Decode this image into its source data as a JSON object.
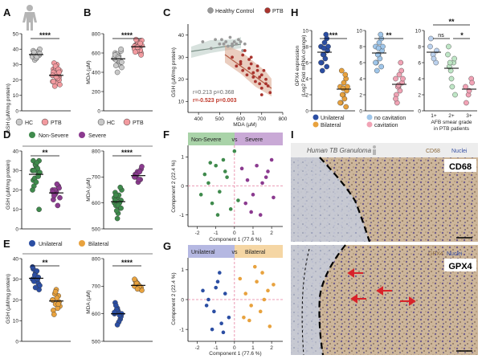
{
  "panels": {
    "A": {
      "label": "A",
      "ylabel": "GSH (µM/mg protein)",
      "ticks": [
        "0",
        "10",
        "20",
        "30",
        "40",
        "50"
      ],
      "categories": [
        "HC",
        "PTB"
      ],
      "sig": "****",
      "colors": [
        "#c8c8c8",
        "#f29a9f"
      ],
      "chart_data": {
        "type": "scatter",
        "ylim": [
          0,
          50
        ],
        "series": [
          {
            "name": "HC",
            "values": [
              36,
              37,
              38,
              35,
              34,
              39,
              37,
              36,
              40,
              33,
              38,
              35,
              36,
              37,
              39,
              34,
              36,
              38,
              35,
              37
            ],
            "mean": 36.5
          },
          {
            "name": "PTB",
            "values": [
              23,
              25,
              20,
              27,
              18,
              22,
              24,
              30,
              17,
              26,
              21,
              19,
              28,
              23,
              25,
              22,
              20,
              31,
              24,
              26,
              16,
              21,
              23,
              29,
              27,
              19,
              22,
              25
            ],
            "mean": 23
          }
        ]
      }
    },
    "B": {
      "label": "B",
      "ylabel": "MDA (µM)",
      "ticks": [
        "0",
        "200",
        "400",
        "600",
        "800"
      ],
      "categories": [
        "HC",
        "PTB"
      ],
      "sig": "****",
      "colors": [
        "#c8c8c8",
        "#f29a9f"
      ],
      "chart_data": {
        "type": "scatter",
        "ylim": [
          0,
          800
        ],
        "series": [
          {
            "name": "HC",
            "values": [
              540,
              560,
              500,
              600,
              480,
              620,
              530,
              570,
              450,
              590,
              510,
              550,
              400,
              520,
              580,
              560,
              640,
              470,
              545,
              505
            ],
            "mean": 540
          },
          {
            "name": "PTB",
            "values": [
              650,
              700,
              620,
              680,
              720,
              600,
              660,
              640,
              730,
              690,
              610,
              670,
              710,
              630,
              650,
              700,
              580,
              740,
              660,
              680,
              620,
              690,
              640,
              660,
              700,
              610
            ],
            "mean": 665
          }
        ]
      }
    },
    "C": {
      "label": "C",
      "xlabel": "MDA (µM)",
      "ylabel": "GSH (µM/mg protein)",
      "xticks": [
        "400",
        "500",
        "600",
        "700",
        "800"
      ],
      "yticks": [
        "10",
        "20",
        "30",
        "40"
      ],
      "legend": [
        {
          "name": "Healthy Control",
          "color": "#999999"
        },
        {
          "name": "PTB",
          "color": "#a9342e"
        }
      ],
      "r_hc": "r=0.213 p=0.368",
      "r_ptb": "r=-0.523 p=0.003",
      "chart_data": {
        "type": "scatter",
        "xlim": [
          350,
          800
        ],
        "ylim": [
          5,
          45
        ],
        "series": [
          {
            "name": "Healthy Control",
            "x": [
              420,
              460,
              480,
              500,
              510,
              520,
              530,
              540,
              550,
              560,
              560,
              570,
              580,
              590,
              600,
              610,
              620
            ],
            "y": [
              37,
              34,
              38,
              36,
              38,
              36,
              37,
              35,
              39,
              36,
              35,
              37,
              36,
              38,
              37,
              33,
              36
            ]
          },
          {
            "name": "PTB",
            "x": [
              560,
              580,
              600,
              610,
              620,
              630,
              640,
              650,
              660,
              660,
              670,
              680,
              690,
              700,
              700,
              710,
              720,
              730,
              610,
              640,
              680,
              700,
              650,
              720,
              600,
              690,
              740
            ],
            "y": [
              30,
              26,
              28,
              24,
              33,
              22,
              25,
              27,
              21,
              23,
              19,
              26,
              18,
              22,
              16,
              24,
              20,
              17,
              31,
              29,
              24,
              13,
              30,
              18,
              27,
              21,
              14
            ]
          }
        ]
      }
    },
    "D": {
      "label": "D",
      "legend": [
        {
          "name": "Non-Severe",
          "color": "#3f8a4c"
        },
        {
          "name": "Severe",
          "color": "#8b3a8f"
        }
      ],
      "gsh": {
        "ylabel": "GSH (µM/mg protein)",
        "ticks": [
          "0",
          "10",
          "20",
          "30",
          "40"
        ],
        "sig": "**",
        "chart_data": {
          "type": "scatter",
          "ylim": [
            0,
            40
          ],
          "series": [
            {
              "name": "Non-Severe",
              "values": [
                30,
                33,
                28,
                25,
                32,
                35,
                22,
                30,
                29,
                26,
                31,
                20,
                33,
                27,
                35,
                24,
                10,
                30,
                34
              ],
              "mean": 28
            },
            {
              "name": "Severe",
              "values": [
                20,
                18,
                22,
                15,
                19,
                21,
                17,
                23,
                16,
                20,
                12,
                19
              ],
              "mean": 18.5
            }
          ]
        }
      },
      "mda": {
        "ylabel": "MDA (µM)",
        "ticks": [
          "500",
          "600",
          "700",
          "800"
        ],
        "sig": "****",
        "chart_data": {
          "type": "scatter",
          "ylim": [
            500,
            800
          ],
          "series": [
            {
              "name": "Non-Severe",
              "values": [
                600,
                620,
                580,
                640,
                560,
                610,
                590,
                630,
                650,
                570,
                600,
                620,
                540,
                660,
                610,
                590,
                580,
                630
              ],
              "mean": 605
            },
            {
              "name": "Severe",
              "values": [
                700,
                720,
                690,
                710,
                680,
                730,
                700,
                690,
                740,
                710,
                720,
                700
              ],
              "mean": 705
            }
          ]
        }
      }
    },
    "E": {
      "label": "E",
      "legend": [
        {
          "name": "Unilateral",
          "color": "#2b4ea3"
        },
        {
          "name": "Bilateral",
          "color": "#e8a23e"
        }
      ],
      "gsh": {
        "ylabel": "GSH (µM/mg protein)",
        "ticks": [
          "0",
          "10",
          "20",
          "30",
          "40"
        ],
        "sig": "**",
        "chart_data": {
          "type": "scatter",
          "ylim": [
            0,
            40
          ],
          "series": [
            {
              "name": "Unilateral",
              "values": [
                30,
                33,
                28,
                35,
                31,
                25,
                29,
                34,
                27,
                32,
                30,
                36,
                26,
                31
              ],
              "mean": 30.5
            },
            {
              "name": "Bilateral",
              "values": [
                20,
                18,
                22,
                15,
                25,
                19,
                13,
                21,
                17,
                23,
                16,
                20,
                24,
                18
              ],
              "mean": 19.5
            }
          ]
        }
      },
      "mda": {
        "ylabel": "MDA (µM)",
        "ticks": [
          "500",
          "600",
          "700",
          "800"
        ],
        "sig": "****",
        "chart_data": {
          "type": "scatter",
          "ylim": [
            500,
            800
          ],
          "series": [
            {
              "name": "Unilateral",
              "values": [
                600,
                620,
                580,
                640,
                610,
                590,
                630,
                570,
                600,
                615,
                595,
                605,
                560
              ],
              "mean": 600
            },
            {
              "name": "Bilateral",
              "values": [
                700,
                710,
                690,
                720,
                705,
                695,
                715,
                700,
                685,
                710,
                700,
                725,
                690
              ],
              "mean": 703
            }
          ]
        }
      }
    },
    "F": {
      "label": "F",
      "tag_left": "Non-Severe",
      "tag_right": "Severe",
      "vs": "vs",
      "xlabel": "Component 1 (77.6 %)",
      "ylabel": "Component 2 (22.4 %)",
      "xticks": [
        "-2",
        "-1",
        "0",
        "1",
        "2"
      ],
      "yticks": [
        "-1",
        "0",
        "1"
      ],
      "chart_data": {
        "type": "scatter",
        "xlim": [
          -2.5,
          2.6
        ],
        "ylim": [
          -1.4,
          1.4
        ],
        "series": [
          {
            "name": "Non-Severe",
            "x": [
              -1.6,
              -1.4,
              -1.2,
              -1.0,
              -0.8,
              -0.6,
              -0.4,
              -0.2,
              0.0,
              -1.8,
              -0.9,
              -0.5,
              -1.3,
              0.2
            ],
            "y": [
              0.4,
              0.1,
              -0.6,
              0.7,
              -0.2,
              0.9,
              0.3,
              -0.8,
              1.2,
              -0.3,
              -1.0,
              0.5,
              0.8,
              -0.5
            ]
          },
          {
            "name": "Severe",
            "x": [
              0.4,
              0.7,
              1.0,
              1.2,
              1.5,
              1.8,
              2.1,
              0.9,
              1.4,
              1.7,
              2.0,
              0.6
            ],
            "y": [
              0.6,
              0.2,
              -0.3,
              0.7,
              0.1,
              0.5,
              -0.4,
              -0.9,
              -1.0,
              0.3,
              0.9,
              -0.6
            ]
          }
        ]
      }
    },
    "G": {
      "label": "G",
      "tag_left": "Unilateral",
      "tag_right": "Bilateral",
      "vs": "vs",
      "xlabel": "Component 1 (77.6 %)",
      "ylabel": "Component 2 (22.4 %)",
      "xticks": [
        "-2",
        "-1",
        "0",
        "1",
        "2"
      ],
      "yticks": [
        "-1",
        "0",
        "1"
      ],
      "chart_data": {
        "type": "scatter",
        "xlim": [
          -2.5,
          2.6
        ],
        "ylim": [
          -1.4,
          1.4
        ],
        "series": [
          {
            "name": "Unilateral",
            "x": [
              -1.7,
              -1.4,
              -1.1,
              -0.9,
              -0.7,
              -0.5,
              -1.2,
              -0.3,
              -0.8,
              -1.5,
              -0.6,
              -1.0
            ],
            "y": [
              0.3,
              0.0,
              -0.4,
              0.6,
              -0.8,
              0.2,
              -1.0,
              -0.6,
              0.9,
              -0.2,
              -1.1,
              0.4
            ]
          },
          {
            "name": "Bilateral",
            "x": [
              0.3,
              0.6,
              0.9,
              1.2,
              1.5,
              1.8,
              0.8,
              1.4,
              1.9,
              0.5,
              1.1,
              1.6,
              2.1
            ],
            "y": [
              0.7,
              0.2,
              -0.2,
              0.6,
              0.9,
              0.3,
              -0.7,
              -0.4,
              -0.9,
              -0.6,
              1.1,
              0.0,
              0.5
            ]
          }
        ]
      }
    },
    "H": {
      "label": "H",
      "ylabel": "GPX4 expression",
      "ylabel2": "(Log2 Fold mRNA change)",
      "ticks": [
        "0",
        "2",
        "4",
        "6",
        "8",
        "10"
      ],
      "sub1": {
        "sig": "***",
        "legend": [
          {
            "name": "Unilateral",
            "color": "#2b4ea3"
          },
          {
            "name": "Bilateral",
            "color": "#e8a23e"
          }
        ],
        "chart_data": {
          "type": "scatter",
          "ylim": [
            0,
            10
          ],
          "series": [
            {
              "name": "Unilateral",
              "values": [
                8,
                7,
                9,
                6,
                8.5,
                7.5,
                5,
                6.5,
                8,
                7,
                9.5,
                6,
                7.8,
                5.5
              ],
              "mean": 7.3
            },
            {
              "name": "Bilateral",
              "values": [
                3,
                2,
                4,
                1,
                3.5,
                2.5,
                5,
                1.5,
                3,
                2,
                4.5,
                1,
                2.8,
                0.5
              ],
              "mean": 2.7
            }
          ]
        }
      },
      "sub2": {
        "sig": "**",
        "legend": [
          {
            "name": "no cavitation",
            "color": "#9fc6ea"
          },
          {
            "name": "cavitation",
            "color": "#f1a3b5"
          }
        ],
        "chart_data": {
          "type": "scatter",
          "ylim": [
            0,
            10
          ],
          "series": [
            {
              "name": "no cavitation",
              "values": [
                8,
                7,
                9,
                6,
                8.5,
                7.5,
                5,
                6.5,
                8,
                7,
                9.5,
                6,
                7.8,
                5.5
              ],
              "mean": 7.2
            },
            {
              "name": "cavitation",
              "values": [
                4,
                3,
                5,
                2,
                4.5,
                3.5,
                1,
                2.5,
                4,
                3,
                6,
                1.5,
                3.2
              ],
              "mean": 3.3
            }
          ]
        }
      },
      "sub3": {
        "sig_top": "**",
        "sig_ns": "ns",
        "sig_star": "*",
        "categories": [
          "1+",
          "2+",
          "3+"
        ],
        "xlabel": "AFB smear grade",
        "xlabel2": "in PTB patients",
        "colors": [
          "#bcd2ee",
          "#bfe6c6",
          "#f2a3b6"
        ],
        "chart_data": {
          "type": "scatter",
          "ylim": [
            0,
            10
          ],
          "series": [
            {
              "name": "1+",
              "values": [
                8,
                7,
                6,
                9,
                6.5,
                7.5
              ],
              "mean": 7.3
            },
            {
              "name": "2+",
              "values": [
                7,
                5,
                6,
                8,
                4,
                6.5,
                5.5,
                3,
                2,
                6
              ],
              "mean": 5.3
            },
            {
              "name": "3+",
              "values": [
                3,
                2,
                4,
                1,
                2.5,
                3.5
              ],
              "mean": 2.7
            }
          ]
        }
      }
    },
    "I": {
      "label": "I",
      "title": "Human TB Granuloma",
      "stain1": "CD68",
      "nuclei": "Nuclei",
      "label1": "CD68",
      "stain2": "GPX4",
      "label2": "GPX4"
    }
  },
  "colors": {
    "hc": "#c8c8c8",
    "ptb": "#f29a9f",
    "ptb_dark": "#a9342e",
    "nonsevere": "#3f8a4c",
    "severe": "#8b3a8f",
    "unilateral": "#2b4ea3",
    "bilateral": "#e8a23e",
    "stain": "#b0874f",
    "nuclei": "#3b53a4"
  }
}
